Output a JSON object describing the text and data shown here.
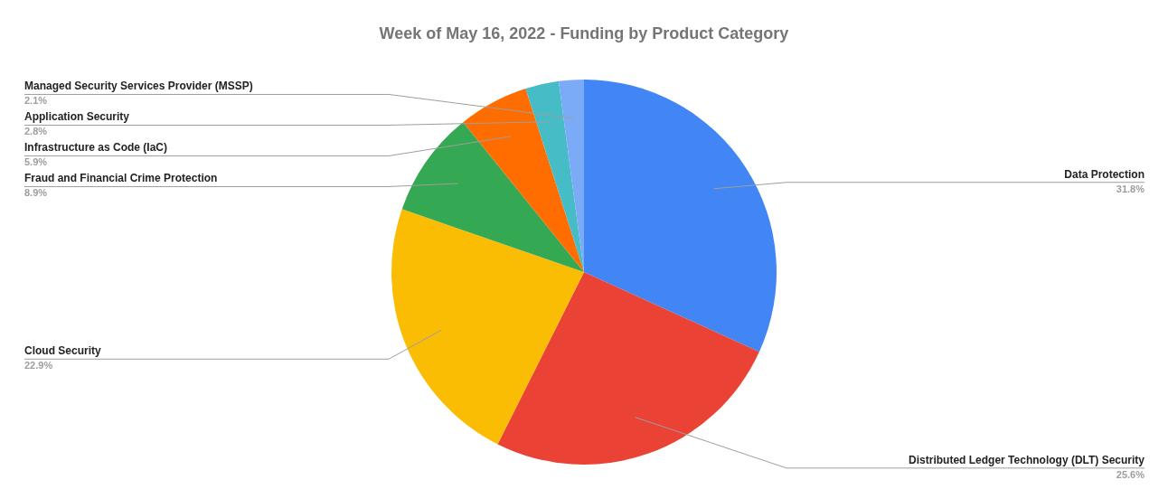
{
  "chart_data": {
    "type": "pie",
    "title": "Week of May 16, 2022 - Funding by Product Category",
    "categories": [
      "Data Protection",
      "Distributed Ledger Technology (DLT) Security",
      "Cloud Security",
      "Fraud and Financial Crime Protection",
      "Infrastructure as Code (IaC)",
      "Application Security",
      "Managed Security Services Provider (MSSP)"
    ],
    "values": [
      31.8,
      25.6,
      22.9,
      8.9,
      5.9,
      2.8,
      2.1
    ],
    "value_labels": [
      "31.8%",
      "25.6%",
      "22.9%",
      "8.9%",
      "5.9%",
      "2.8%",
      "2.1%"
    ],
    "colors": [
      "#4285f4",
      "#ea4335",
      "#fbbc04",
      "#34a853",
      "#ff6d01",
      "#46bdc6",
      "#7baaf7"
    ]
  }
}
